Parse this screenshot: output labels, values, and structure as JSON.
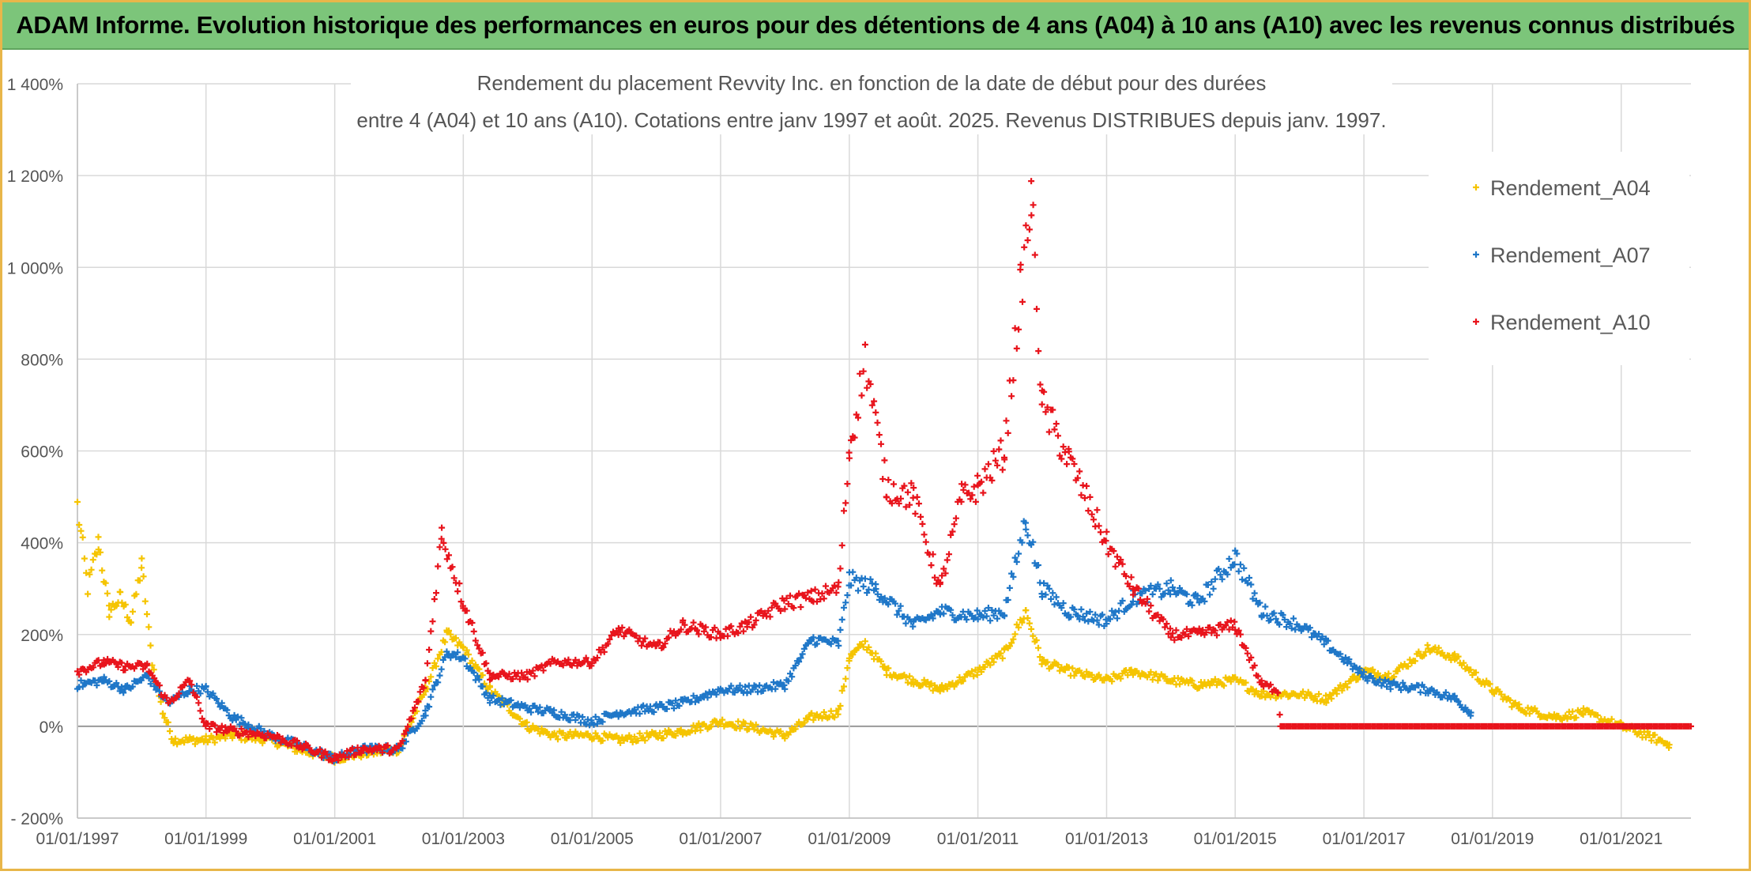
{
  "banner": {
    "title": "ADAM Informe. Evolution historique des performances en euros pour des détentions de 4 ans (A04) à 10 ans (A10) avec les revenus connus distribués"
  },
  "colors": {
    "banner_bg": "#7cc57a",
    "frame": "#e8b64a",
    "series_A04": "#f5c400",
    "series_A07": "#1f77c8",
    "series_A10": "#e8141c"
  },
  "chart_data": {
    "type": "scatter",
    "title_line1": "Rendement du placement Revvity Inc. en fonction de la date de début pour des durées",
    "title_line2": "entre 4 (A04) et 10 ans (A10). Cotations entre janv 1997 et août. 2025. Revenus DISTRIBUES depuis janv. 1997.",
    "xlabel": "",
    "ylabel": "",
    "x_ticks": [
      "01/01/1997",
      "01/01/1999",
      "01/01/2001",
      "01/01/2003",
      "01/01/2005",
      "01/01/2007",
      "01/01/2009",
      "01/01/2011",
      "01/01/2013",
      "01/01/2015",
      "01/01/2017",
      "01/01/2019",
      "01/01/2021"
    ],
    "y_ticks": [
      "- 200%",
      "0%",
      "200%",
      "400%",
      "600%",
      "800%",
      "1 000%",
      "1 200%",
      "1 400%"
    ],
    "xlim": [
      "1997-01-01",
      "2022-02-01"
    ],
    "ylim": [
      -200,
      1400
    ],
    "grid": true,
    "legend_position": "top-right",
    "marker": "+",
    "series": [
      {
        "name": "Rendement_A04",
        "color": "#f5c400",
        "points": [
          [
            "1997-01-01",
            480
          ],
          [
            "1997-03-01",
            300
          ],
          [
            "1997-05-01",
            400
          ],
          [
            "1997-07-01",
            250
          ],
          [
            "1997-09-01",
            280
          ],
          [
            "1997-11-01",
            230
          ],
          [
            "1998-01-01",
            350
          ],
          [
            "1998-03-01",
            140
          ],
          [
            "1998-05-01",
            30
          ],
          [
            "1998-07-01",
            -30
          ],
          [
            "1998-10-01",
            -30
          ],
          [
            "1999-01-01",
            -30
          ],
          [
            "1999-06-01",
            -20
          ],
          [
            "2000-01-01",
            -30
          ],
          [
            "2000-06-01",
            -50
          ],
          [
            "2001-01-01",
            -70
          ],
          [
            "2001-06-01",
            -60
          ],
          [
            "2002-01-01",
            -50
          ],
          [
            "2002-06-01",
            80
          ],
          [
            "2002-10-01",
            200
          ],
          [
            "2003-01-01",
            170
          ],
          [
            "2003-06-01",
            80
          ],
          [
            "2004-01-01",
            0
          ],
          [
            "2004-06-01",
            -20
          ],
          [
            "2005-01-01",
            -20
          ],
          [
            "2005-06-01",
            -30
          ],
          [
            "2006-01-01",
            -20
          ],
          [
            "2006-06-01",
            -10
          ],
          [
            "2007-01-01",
            10
          ],
          [
            "2007-06-01",
            0
          ],
          [
            "2008-01-01",
            -20
          ],
          [
            "2008-06-01",
            20
          ],
          [
            "2008-11-01",
            30
          ],
          [
            "2009-01-01",
            150
          ],
          [
            "2009-04-01",
            180
          ],
          [
            "2009-08-01",
            120
          ],
          [
            "2010-01-01",
            100
          ],
          [
            "2010-06-01",
            80
          ],
          [
            "2011-01-01",
            120
          ],
          [
            "2011-06-01",
            160
          ],
          [
            "2011-10-01",
            250
          ],
          [
            "2012-01-01",
            140
          ],
          [
            "2012-06-01",
            120
          ],
          [
            "2013-01-01",
            100
          ],
          [
            "2013-06-01",
            120
          ],
          [
            "2014-01-01",
            100
          ],
          [
            "2014-06-01",
            90
          ],
          [
            "2015-01-01",
            100
          ],
          [
            "2015-06-01",
            70
          ],
          [
            "2016-01-01",
            70
          ],
          [
            "2016-06-01",
            60
          ],
          [
            "2017-01-01",
            120
          ],
          [
            "2017-06-01",
            110
          ],
          [
            "2018-01-01",
            170
          ],
          [
            "2018-06-01",
            150
          ],
          [
            "2019-01-01",
            80
          ],
          [
            "2019-06-01",
            40
          ],
          [
            "2020-01-01",
            20
          ],
          [
            "2020-06-01",
            30
          ],
          [
            "2021-01-01",
            0
          ],
          [
            "2021-06-01",
            -20
          ],
          [
            "2021-10-01",
            -40
          ]
        ]
      },
      {
        "name": "Rendement_A07",
        "color": "#1f77c8",
        "points": [
          [
            "1997-01-01",
            90
          ],
          [
            "1997-06-01",
            100
          ],
          [
            "1997-10-01",
            80
          ],
          [
            "1998-02-01",
            110
          ],
          [
            "1998-06-01",
            50
          ],
          [
            "1998-10-01",
            80
          ],
          [
            "1999-01-01",
            80
          ],
          [
            "1999-06-01",
            20
          ],
          [
            "2000-01-01",
            -20
          ],
          [
            "2000-06-01",
            -40
          ],
          [
            "2001-01-01",
            -70
          ],
          [
            "2001-06-01",
            -50
          ],
          [
            "2002-01-01",
            -50
          ],
          [
            "2002-06-01",
            30
          ],
          [
            "2002-10-01",
            160
          ],
          [
            "2003-01-01",
            150
          ],
          [
            "2003-06-01",
            60
          ],
          [
            "2004-01-01",
            40
          ],
          [
            "2004-06-01",
            30
          ],
          [
            "2005-01-01",
            10
          ],
          [
            "2005-06-01",
            30
          ],
          [
            "2006-01-01",
            40
          ],
          [
            "2006-06-01",
            50
          ],
          [
            "2007-01-01",
            80
          ],
          [
            "2007-06-01",
            80
          ],
          [
            "2008-01-01",
            90
          ],
          [
            "2008-06-01",
            190
          ],
          [
            "2008-11-01",
            180
          ],
          [
            "2009-01-01",
            320
          ],
          [
            "2009-06-01",
            300
          ],
          [
            "2010-01-01",
            220
          ],
          [
            "2010-06-01",
            250
          ],
          [
            "2011-01-01",
            240
          ],
          [
            "2011-06-01",
            250
          ],
          [
            "2011-10-01",
            450
          ],
          [
            "2012-01-01",
            300
          ],
          [
            "2012-06-01",
            250
          ],
          [
            "2013-01-01",
            230
          ],
          [
            "2013-06-01",
            280
          ],
          [
            "2014-01-01",
            300
          ],
          [
            "2014-06-01",
            270
          ],
          [
            "2015-01-01",
            370
          ],
          [
            "2015-06-01",
            250
          ],
          [
            "2016-01-01",
            220
          ],
          [
            "2016-06-01",
            180
          ],
          [
            "2017-01-01",
            110
          ],
          [
            "2017-06-01",
            90
          ],
          [
            "2018-01-01",
            80
          ],
          [
            "2018-06-01",
            60
          ],
          [
            "2018-09-01",
            30
          ]
        ]
      },
      {
        "name": "Rendement_A10",
        "color": "#e8141c",
        "points": [
          [
            "1997-01-01",
            120
          ],
          [
            "1997-06-01",
            140
          ],
          [
            "1997-10-01",
            130
          ],
          [
            "1998-02-01",
            130
          ],
          [
            "1998-06-01",
            50
          ],
          [
            "1998-10-01",
            100
          ],
          [
            "1999-01-01",
            0
          ],
          [
            "1999-06-01",
            -10
          ],
          [
            "2000-01-01",
            -20
          ],
          [
            "2000-06-01",
            -40
          ],
          [
            "2001-01-01",
            -70
          ],
          [
            "2001-06-01",
            -50
          ],
          [
            "2002-01-01",
            -50
          ],
          [
            "2002-06-01",
            100
          ],
          [
            "2002-09-01",
            420
          ],
          [
            "2003-01-01",
            270
          ],
          [
            "2003-06-01",
            110
          ],
          [
            "2004-01-01",
            110
          ],
          [
            "2004-06-01",
            140
          ],
          [
            "2005-01-01",
            140
          ],
          [
            "2005-06-01",
            210
          ],
          [
            "2006-01-01",
            170
          ],
          [
            "2006-06-01",
            220
          ],
          [
            "2007-01-01",
            200
          ],
          [
            "2007-06-01",
            220
          ],
          [
            "2008-01-01",
            270
          ],
          [
            "2008-06-01",
            280
          ],
          [
            "2008-11-01",
            300
          ],
          [
            "2009-01-01",
            600
          ],
          [
            "2009-04-01",
            800
          ],
          [
            "2009-08-01",
            520
          ],
          [
            "2010-01-01",
            500
          ],
          [
            "2010-06-01",
            300
          ],
          [
            "2010-10-01",
            500
          ],
          [
            "2011-01-01",
            520
          ],
          [
            "2011-06-01",
            600
          ],
          [
            "2011-09-01",
            950
          ],
          [
            "2011-11-01",
            1150
          ],
          [
            "2012-01-01",
            700
          ],
          [
            "2012-06-01",
            580
          ],
          [
            "2013-01-01",
            400
          ],
          [
            "2013-06-01",
            300
          ],
          [
            "2014-01-01",
            200
          ],
          [
            "2014-06-01",
            200
          ],
          [
            "2015-01-01",
            220
          ],
          [
            "2015-06-01",
            90
          ],
          [
            "2015-09-01",
            80
          ],
          [
            "2015-09-15",
            0
          ],
          [
            "2022-02-01",
            0
          ]
        ]
      }
    ]
  }
}
